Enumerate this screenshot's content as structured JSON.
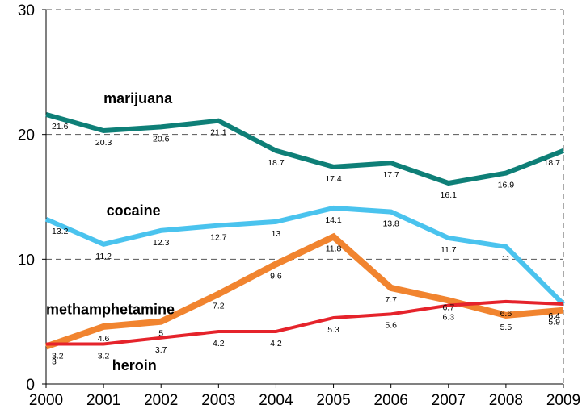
{
  "chart_data": {
    "type": "line",
    "x": [
      "2000",
      "2001",
      "2002",
      "2003",
      "2004",
      "2005",
      "2006",
      "2007",
      "2008",
      "2009"
    ],
    "ylim": [
      0,
      30
    ],
    "yticks": [
      "0",
      "10",
      "20",
      "30"
    ],
    "grid": "horizontal dashed",
    "series": [
      {
        "name": "marijuana",
        "color": "#0e7f77",
        "values": [
          21.6,
          20.3,
          20.6,
          21.1,
          18.7,
          17.4,
          17.7,
          16.1,
          16.9,
          18.7
        ],
        "labels": [
          "21.6",
          "20.3",
          "20.6",
          "21.1",
          "18.7",
          "17.4",
          "17.7",
          "16.1",
          "16.9",
          "18.7"
        ]
      },
      {
        "name": "cocaine",
        "color": "#4ac3ee",
        "values": [
          13.2,
          11.2,
          12.3,
          12.7,
          13,
          14.1,
          13.8,
          11.7,
          11,
          6.4
        ],
        "labels": [
          "13.2",
          "11.2",
          "12.3",
          "12.7",
          "13",
          "14.1",
          "13.8",
          "11.7",
          "11",
          "6.4"
        ]
      },
      {
        "name": "methamphetamine",
        "color": "#f1842f",
        "values": [
          3,
          4.6,
          5,
          7.2,
          9.6,
          11.8,
          7.7,
          6.7,
          5.5,
          5.9
        ],
        "labels": [
          "3",
          "4.6",
          "5",
          "7.2",
          "9.6",
          "11.8",
          "7.7",
          "6.7",
          "5.5",
          "5.9"
        ]
      },
      {
        "name": "heroin",
        "color": "#e5232b",
        "values": [
          3.2,
          3.2,
          3.7,
          4.2,
          4.2,
          5.3,
          5.6,
          6.3,
          6.6,
          6.4
        ],
        "labels": [
          "3.2",
          "3.2",
          "3.7",
          "4.2",
          "4.2",
          "5.3",
          "5.6",
          "6.3",
          "6.6",
          "6.4"
        ]
      }
    ]
  }
}
